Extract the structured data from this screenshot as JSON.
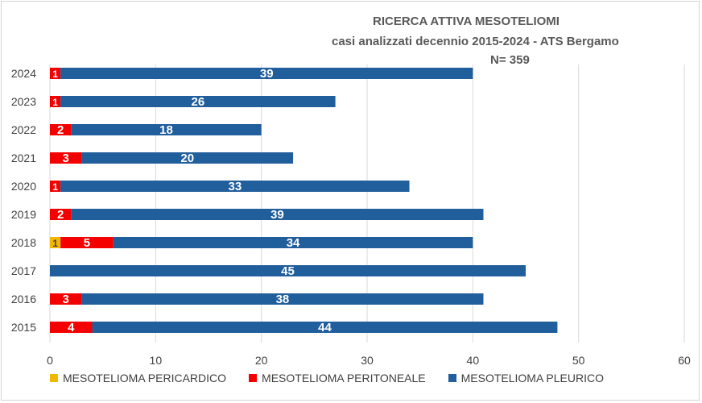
{
  "chart_data": {
    "type": "bar",
    "orientation": "horizontal",
    "stacked": true,
    "title_lines": [
      "RICERCA ATTIVA MESOTELIOMI",
      "casi analizzati decennio 2015-2024 - ATS Bergamo",
      "N= 359"
    ],
    "categories": [
      "2024",
      "2023",
      "2022",
      "2021",
      "2020",
      "2019",
      "2018",
      "2017",
      "2016",
      "2015"
    ],
    "series": [
      {
        "name": "MESOTELIOMA PERICARDICO",
        "color": "#f2b800",
        "values": [
          0,
          0,
          0,
          0,
          0,
          0,
          1,
          0,
          0,
          0
        ]
      },
      {
        "name": "MESOTELIOMA PERITONEALE",
        "color": "#f40000",
        "values": [
          1,
          1,
          2,
          3,
          1,
          2,
          5,
          0,
          3,
          4
        ]
      },
      {
        "name": "MESOTELIOMA PLEURICO",
        "color": "#215e9c",
        "values": [
          39,
          26,
          18,
          20,
          33,
          39,
          34,
          45,
          38,
          44
        ]
      }
    ],
    "xlim": [
      0,
      60
    ],
    "x_ticks": [
      0,
      10,
      20,
      30,
      40,
      50,
      60
    ],
    "grid": true,
    "legend_position": "bottom-left"
  }
}
